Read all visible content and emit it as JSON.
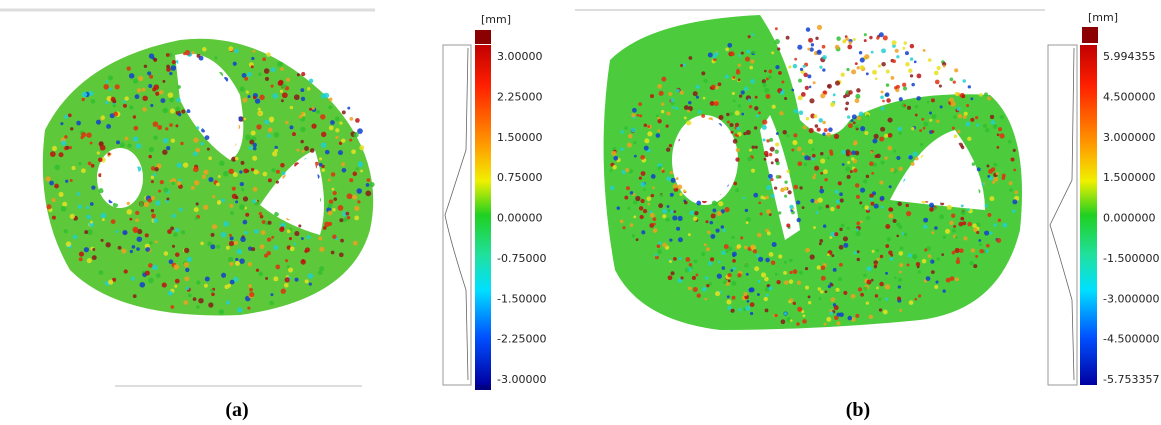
{
  "panels": [
    {
      "unit": "[mm]",
      "scale_labels": [
        "3.00000",
        "2.25000",
        "1.50000",
        "0.75000",
        "0.00000",
        "-0.75000",
        "-1.50000",
        "-2.25000",
        "-3.00000"
      ],
      "caption": "(a)"
    },
    {
      "unit": "[mm]",
      "scale_labels": [
        "5.994355",
        "4.500000",
        "3.000000",
        "1.500000",
        "0.000000",
        "-1.500000",
        "-3.000000",
        "-4.500000",
        "-5.753357"
      ],
      "caption": "(b)"
    }
  ]
}
